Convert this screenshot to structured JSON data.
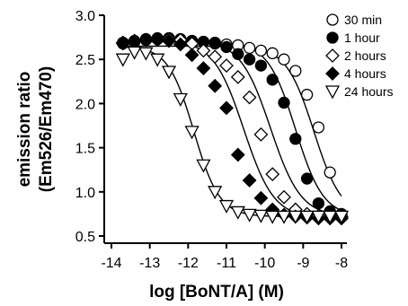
{
  "chart_data": {
    "type": "scatter",
    "title": "",
    "xlabel": "log [BoNT/A] (M)",
    "ylabel_lines": [
      "emission ratio",
      "(Em526/Em470)"
    ],
    "xlim": [
      -14,
      -8
    ],
    "ylim": [
      0.5,
      3.0
    ],
    "xticks": [
      -14,
      -13,
      -12,
      -11,
      -10,
      -9,
      -8
    ],
    "xtick_labels": [
      "-14",
      "-13",
      "-12",
      "-11",
      "-10",
      "-9",
      "-8"
    ],
    "yticks": [
      0.5,
      1.0,
      1.5,
      2.0,
      2.5,
      3.0
    ],
    "ytick_labels": [
      "0.5",
      "1.0",
      "1.5",
      "2.0",
      "2.5",
      "3.0"
    ],
    "grid": false,
    "legend_position": "top-right",
    "series": [
      {
        "name": "30 min",
        "marker": "circle-open",
        "fit": {
          "top": 2.65,
          "bottom": 0.72,
          "log_ec50": -8.72,
          "hill": 1.2
        },
        "x": [
          -13.7,
          -13.4,
          -13.1,
          -12.8,
          -12.5,
          -12.2,
          -11.9,
          -11.6,
          -11.3,
          -11.0,
          -10.7,
          -10.4,
          -10.1,
          -9.8,
          -9.5,
          -9.2,
          -8.9,
          -8.6,
          -8.3,
          -8.0
        ],
        "y": [
          2.68,
          2.7,
          2.72,
          2.73,
          2.74,
          2.72,
          2.71,
          2.7,
          2.69,
          2.67,
          2.66,
          2.63,
          2.6,
          2.57,
          2.5,
          2.37,
          2.1,
          1.73,
          1.22,
          0.75
        ]
      },
      {
        "name": "1 hour",
        "marker": "circle-filled",
        "fit": {
          "top": 2.7,
          "bottom": 0.72,
          "log_ec50": -9.2,
          "hill": 1.2
        },
        "x": [
          -13.7,
          -13.4,
          -13.1,
          -12.8,
          -12.5,
          -12.2,
          -11.9,
          -11.6,
          -11.3,
          -11.0,
          -10.7,
          -10.4,
          -10.1,
          -9.8,
          -9.5,
          -9.2,
          -8.9,
          -8.6,
          -8.3,
          -8.0
        ],
        "y": [
          2.69,
          2.71,
          2.73,
          2.74,
          2.74,
          2.73,
          2.71,
          2.7,
          2.68,
          2.64,
          2.56,
          2.5,
          2.43,
          2.27,
          2.01,
          1.6,
          1.15,
          0.87,
          0.78,
          0.74
        ]
      },
      {
        "name": "2 hours",
        "marker": "diamond-open",
        "fit": {
          "top": 2.72,
          "bottom": 0.72,
          "log_ec50": -9.85,
          "hill": 1.1
        },
        "x": [
          -13.7,
          -13.4,
          -13.1,
          -12.8,
          -12.5,
          -12.2,
          -11.9,
          -11.6,
          -11.3,
          -11.0,
          -10.7,
          -10.4,
          -10.1,
          -9.8,
          -9.5,
          -9.2,
          -8.9,
          -8.6,
          -8.3,
          -8.0
        ],
        "y": [
          2.68,
          2.71,
          2.72,
          2.73,
          2.73,
          2.72,
          2.68,
          2.6,
          2.53,
          2.43,
          2.3,
          2.07,
          1.65,
          1.2,
          0.94,
          0.8,
          0.75,
          0.73,
          0.72,
          0.72
        ]
      },
      {
        "name": "4 hours",
        "marker": "diamond-filled",
        "fit": {
          "top": 2.72,
          "bottom": 0.7,
          "log_ec50": -10.55,
          "hill": 1.1
        },
        "x": [
          -13.7,
          -13.4,
          -13.1,
          -12.8,
          -12.5,
          -12.2,
          -11.9,
          -11.6,
          -11.3,
          -11.0,
          -10.7,
          -10.4,
          -10.1,
          -9.8,
          -9.5,
          -9.2,
          -8.9,
          -8.6,
          -8.3,
          -8.0
        ],
        "y": [
          2.69,
          2.71,
          2.72,
          2.72,
          2.71,
          2.67,
          2.55,
          2.4,
          2.2,
          1.95,
          1.42,
          1.13,
          0.93,
          0.8,
          0.74,
          0.72,
          0.71,
          0.7,
          0.7,
          0.7
        ]
      },
      {
        "name": "24 hours",
        "marker": "triangle-down-open",
        "fit": {
          "top": 2.65,
          "bottom": 0.72,
          "log_ec50": -11.85,
          "hill": 1.3
        },
        "x": [
          -13.7,
          -13.4,
          -13.1,
          -12.8,
          -12.5,
          -12.2,
          -11.9,
          -11.6,
          -11.3,
          -11.0,
          -10.7,
          -10.4,
          -10.1,
          -9.8,
          -9.5,
          -9.2,
          -8.9,
          -8.6,
          -8.3,
          -8.0
        ],
        "y": [
          2.5,
          2.58,
          2.57,
          2.5,
          2.36,
          2.05,
          1.68,
          1.3,
          1.0,
          0.84,
          0.77,
          0.74,
          0.73,
          0.72,
          0.72,
          0.72,
          0.72,
          0.72,
          0.72,
          0.72
        ]
      }
    ]
  }
}
